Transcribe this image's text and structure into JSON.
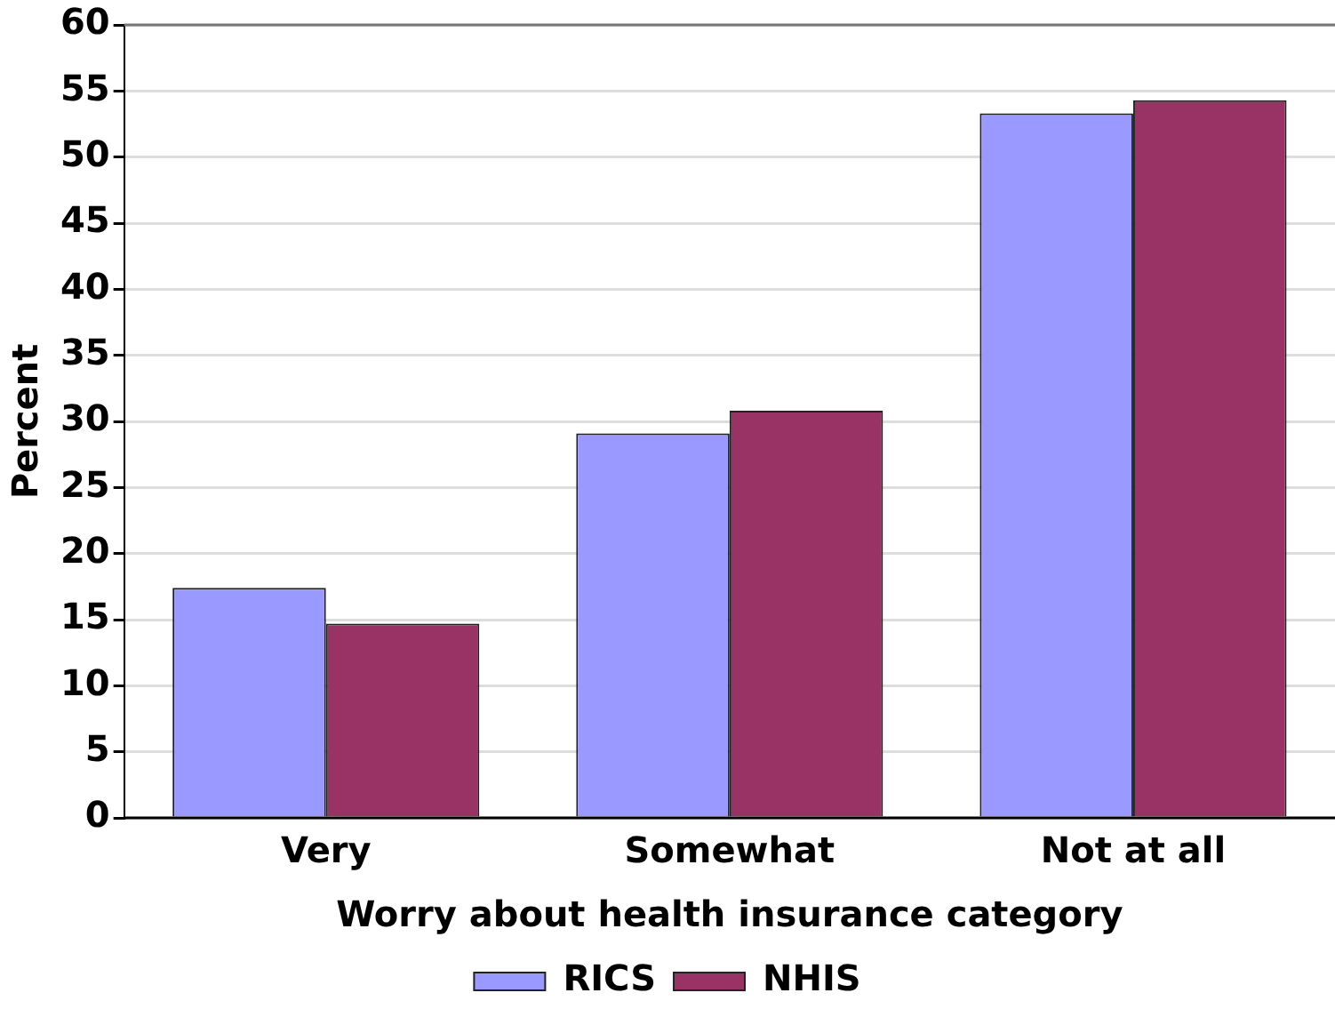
{
  "chart_data": {
    "type": "bar",
    "xlabel": "Worry about health insurance category",
    "ylabel": "Percent",
    "categories": [
      "Very",
      "Somewhat",
      "Not at all"
    ],
    "series": [
      {
        "name": "RICS",
        "color": "#9999ff",
        "values": [
          17.4,
          29.1,
          53.3
        ]
      },
      {
        "name": "NHIS",
        "color": "#993366",
        "values": [
          14.7,
          30.8,
          54.3
        ]
      }
    ],
    "ylim": [
      0,
      60
    ],
    "yticks": [
      0,
      5,
      10,
      15,
      20,
      25,
      30,
      35,
      40,
      45,
      50,
      55,
      60
    ],
    "grid": "y",
    "legend": "bottom"
  }
}
